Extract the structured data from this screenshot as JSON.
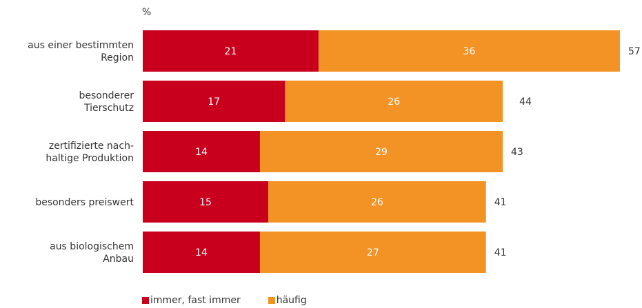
{
  "chart_data": {
    "type": "bar",
    "orientation": "horizontal",
    "stacked": true,
    "unit": "%",
    "categories": [
      [
        "aus einer bestimmten",
        "Region"
      ],
      [
        "besonderer",
        "Tierschutz"
      ],
      [
        "zertifizierte nach-",
        "haltige Produktion"
      ],
      [
        "besonders preiswert"
      ],
      [
        "aus biologischem",
        "Anbau"
      ]
    ],
    "series": [
      {
        "name": "immer, fast immer",
        "color": "#c8001e",
        "values": [
          21,
          17,
          14,
          15,
          14
        ]
      },
      {
        "name": "häufig",
        "color": "#f39325",
        "values": [
          36,
          26,
          29,
          26,
          27
        ]
      }
    ],
    "totals": [
      57,
      44,
      43,
      41,
      41
    ],
    "xlim": [
      0,
      57
    ],
    "grid": false,
    "legend_position": "bottom-left"
  }
}
